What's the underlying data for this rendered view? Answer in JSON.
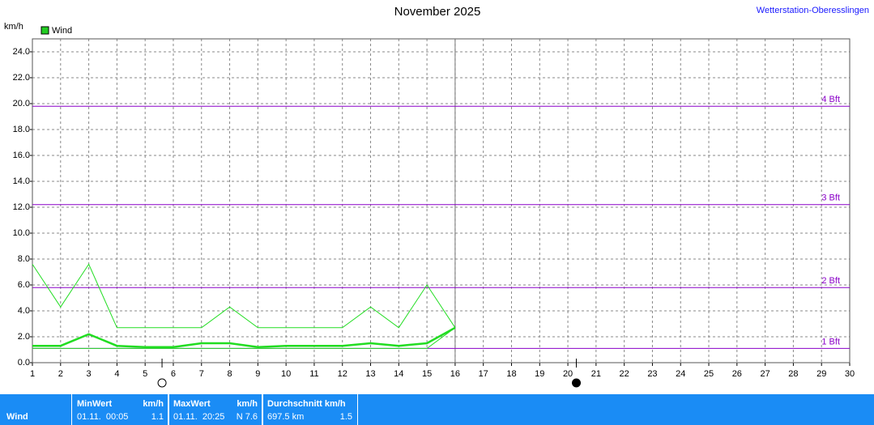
{
  "chart_data": {
    "type": "line",
    "title": "November 2025",
    "y_unit": "km/h",
    "legend_label": "Wind",
    "legend_color": "#22cc22",
    "x": [
      1,
      2,
      3,
      4,
      5,
      6,
      7,
      8,
      9,
      10,
      11,
      12,
      13,
      14,
      15,
      16
    ],
    "series": [
      {
        "color": "#22dd22",
        "width": 1,
        "values": [
          7.6,
          4.3,
          7.6,
          2.7,
          2.7,
          2.7,
          2.7,
          4.3,
          2.7,
          2.7,
          2.7,
          2.7,
          4.3,
          2.7,
          6.0,
          2.7
        ]
      },
      {
        "color": "#22dd22",
        "width": 2.5,
        "values": [
          1.3,
          1.3,
          2.2,
          1.3,
          1.2,
          1.2,
          1.5,
          1.5,
          1.2,
          1.3,
          1.3,
          1.3,
          1.5,
          1.3,
          1.5,
          2.7
        ]
      },
      {
        "color": "#22dd22",
        "width": 1,
        "values": [
          1.1,
          1.1,
          1.1,
          1.1,
          1.1,
          1.1,
          1.1,
          1.1,
          1.1,
          1.1,
          1.1,
          1.1,
          1.1,
          1.1,
          1.1,
          2.7
        ]
      }
    ],
    "xlim": [
      1,
      30
    ],
    "xticks": [
      1,
      2,
      3,
      4,
      5,
      6,
      7,
      8,
      9,
      10,
      11,
      12,
      13,
      14,
      15,
      16,
      17,
      18,
      19,
      20,
      21,
      22,
      23,
      24,
      25,
      26,
      27,
      28,
      29,
      30
    ],
    "ylim": [
      0,
      25
    ],
    "yticks": [
      {
        "value": 0,
        "label": "0.0"
      },
      {
        "value": 2,
        "label": "2.0"
      },
      {
        "value": 4,
        "label": "4.0"
      },
      {
        "value": 6,
        "label": "6.0"
      },
      {
        "value": 8,
        "label": "8.0"
      },
      {
        "value": 10,
        "label": "10.0"
      },
      {
        "value": 12,
        "label": "12.0"
      },
      {
        "value": 14,
        "label": "14.0"
      },
      {
        "value": 16,
        "label": "16.0"
      },
      {
        "value": 18,
        "label": "18.0"
      },
      {
        "value": 20,
        "label": "20.0"
      },
      {
        "value": 22,
        "label": "22.0"
      },
      {
        "value": 24,
        "label": "24.0"
      }
    ],
    "grid": true,
    "ref_lines": [
      {
        "value": 1.1,
        "label": "1 Bft"
      },
      {
        "value": 5.8,
        "label": "2 Bft"
      },
      {
        "value": 12.2,
        "label": "3 Bft"
      },
      {
        "value": 19.8,
        "label": "4 Bft"
      }
    ],
    "ref_color": "#8a00c8",
    "current_day": 16,
    "moon_phases": [
      {
        "x": 5.6,
        "filled": false
      },
      {
        "x": 20.3,
        "filled": true
      }
    ]
  },
  "header": {
    "station": "Wetterstation-Oberesslingen"
  },
  "summary": {
    "row_label": "Wind",
    "columns": [
      {
        "header": "MinWert",
        "unit": "km/h",
        "when": "01.11.  00:05",
        "value": "1.1"
      },
      {
        "header": "MaxWert",
        "unit": "km/h",
        "when": "01.11.  20:25",
        "value": "N 7.6"
      },
      {
        "header": "Durchschnitt km/h",
        "when": "697.5 km",
        "value": "1.5"
      }
    ]
  }
}
